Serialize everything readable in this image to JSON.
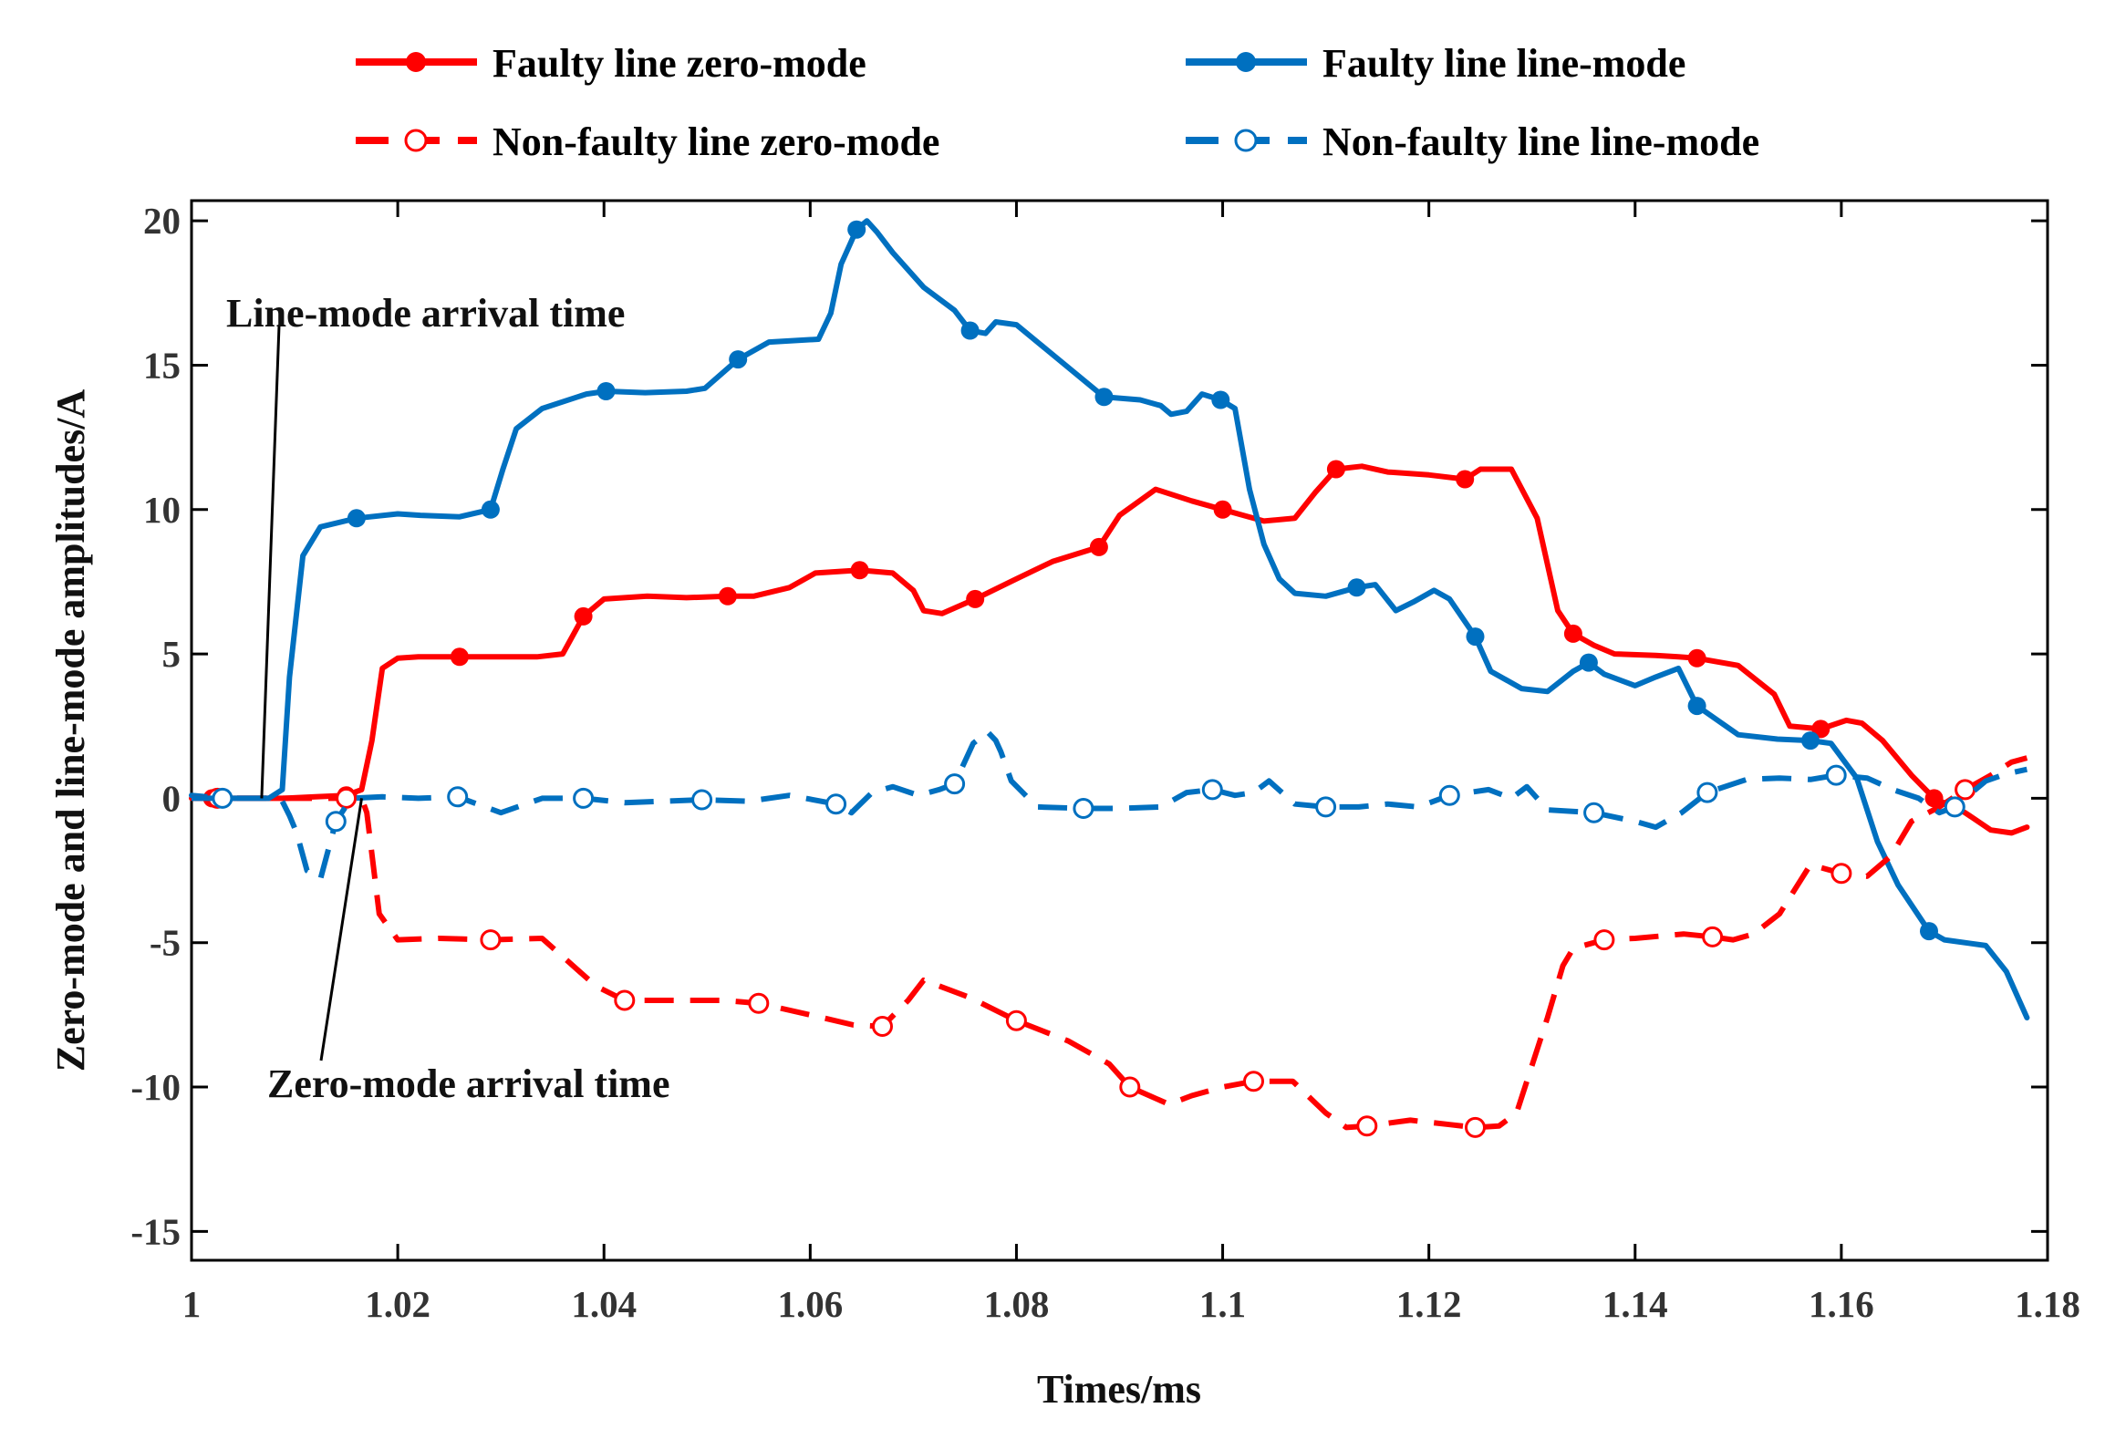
{
  "chart_data": {
    "type": "line",
    "title": "",
    "xlabel": "Times/ms",
    "ylabel": "Zero-mode and line-mode amplitudes/A",
    "xlim": [
      1,
      1.18
    ],
    "ylim": [
      -16,
      20.7
    ],
    "xticks": [
      1,
      1.02,
      1.04,
      1.06,
      1.08,
      1.1,
      1.12,
      1.14,
      1.16,
      1.18
    ],
    "xtick_labels": [
      "1",
      "1.02",
      "1.04",
      "1.06",
      "1.08",
      "1.1",
      "1.12",
      "1.14",
      "1.16",
      "1.18"
    ],
    "yticks": [
      20,
      15,
      10,
      5,
      0,
      -5,
      -10,
      -15
    ],
    "ytick_labels": [
      "20",
      "15",
      "10",
      "5",
      "0",
      "-5",
      "-10",
      "-15"
    ],
    "grid": false,
    "legend_position": "top",
    "annotations": [
      {
        "id": "line-mode",
        "text": "Line-mode arrival time",
        "x": 1.0068,
        "y": 0
      },
      {
        "id": "zero-mode",
        "text": "Zero-mode arrival time",
        "x": 1.0165,
        "y": 0
      }
    ],
    "series": [
      {
        "id": "faulty-zero",
        "name": "Faulty line zero-mode",
        "color": "#ff0000",
        "style": "solid",
        "marker": "filled",
        "x": [
          1.0,
          1.002,
          1.005,
          1.0068,
          1.009,
          1.012,
          1.015,
          1.0165,
          1.0175,
          1.0185,
          1.02,
          1.022,
          1.026,
          1.03,
          1.0335,
          1.036,
          1.038,
          1.04,
          1.0442,
          1.048,
          1.052,
          1.0545,
          1.058,
          1.0605,
          1.0648,
          1.068,
          1.07,
          1.071,
          1.0728,
          1.076,
          1.08,
          1.0835,
          1.088,
          1.09,
          1.0935,
          1.097,
          1.1,
          1.102,
          1.104,
          1.107,
          1.109,
          1.111,
          1.1135,
          1.116,
          1.12,
          1.1235,
          1.125,
          1.128,
          1.1305,
          1.1325,
          1.134,
          1.136,
          1.138,
          1.142,
          1.1442,
          1.146,
          1.15,
          1.1535,
          1.155,
          1.158,
          1.1605,
          1.162,
          1.164,
          1.1668,
          1.169,
          1.172,
          1.1745,
          1.1765,
          1.178
        ],
        "y": [
          0,
          0,
          0,
          0,
          0,
          0.05,
          0.1,
          0.3,
          2.0,
          4.5,
          4.85,
          4.9,
          4.9,
          4.9,
          4.9,
          5.0,
          6.3,
          6.9,
          7.0,
          6.95,
          7.0,
          7.0,
          7.3,
          7.8,
          7.9,
          7.8,
          7.2,
          6.5,
          6.4,
          6.9,
          7.6,
          8.2,
          8.7,
          9.8,
          10.7,
          10.3,
          10.0,
          9.8,
          9.6,
          9.7,
          10.6,
          11.4,
          11.5,
          11.3,
          11.2,
          11.05,
          11.4,
          11.4,
          9.7,
          6.5,
          5.7,
          5.3,
          5.0,
          4.95,
          4.9,
          4.85,
          4.6,
          3.6,
          2.5,
          2.4,
          2.7,
          2.6,
          2.0,
          0.8,
          0.0,
          -0.5,
          -1.1,
          -1.2,
          -1.0
        ]
      },
      {
        "id": "faulty-line",
        "name": "Faulty line line-mode",
        "color": "#0070c0",
        "style": "solid",
        "marker": "filled",
        "x": [
          1.0,
          1.003,
          1.006,
          1.0075,
          1.0088,
          1.0095,
          1.0108,
          1.0125,
          1.016,
          1.02,
          1.0222,
          1.026,
          1.029,
          1.0302,
          1.0315,
          1.034,
          1.0383,
          1.0402,
          1.044,
          1.048,
          1.0498,
          1.053,
          1.056,
          1.0608,
          1.062,
          1.063,
          1.0645,
          1.0655,
          1.0665,
          1.068,
          1.071,
          1.074,
          1.0755,
          1.077,
          1.078,
          1.08,
          1.0885,
          1.092,
          1.094,
          1.095,
          1.0965,
          1.098,
          1.0998,
          1.1012,
          1.1026,
          1.104,
          1.1055,
          1.107,
          1.11,
          1.113,
          1.1148,
          1.1168,
          1.1185,
          1.1205,
          1.122,
          1.1245,
          1.126,
          1.129,
          1.1315,
          1.134,
          1.1355,
          1.137,
          1.14,
          1.142,
          1.1442,
          1.146,
          1.15,
          1.1538,
          1.157,
          1.159,
          1.1615,
          1.1635,
          1.1655,
          1.1685,
          1.17,
          1.174,
          1.176,
          1.178
        ],
        "y": [
          0.1,
          0,
          0,
          0,
          0.3,
          4.2,
          8.4,
          9.4,
          9.7,
          9.85,
          9.8,
          9.75,
          10.0,
          11.4,
          12.8,
          13.5,
          14.0,
          14.1,
          14.05,
          14.1,
          14.2,
          15.2,
          15.8,
          15.9,
          16.8,
          18.5,
          19.7,
          20.0,
          19.6,
          18.9,
          17.7,
          16.9,
          16.2,
          16.1,
          16.5,
          16.4,
          13.9,
          13.8,
          13.6,
          13.3,
          13.4,
          14.0,
          13.8,
          13.5,
          10.7,
          8.8,
          7.6,
          7.1,
          7.0,
          7.3,
          7.4,
          6.5,
          6.8,
          7.2,
          6.9,
          5.6,
          4.4,
          3.8,
          3.7,
          4.4,
          4.7,
          4.3,
          3.9,
          4.2,
          4.5,
          3.2,
          2.2,
          2.05,
          2.0,
          1.9,
          0.7,
          -1.5,
          -3.0,
          -4.6,
          -4.9,
          -5.1,
          -6.0,
          -7.6
        ]
      },
      {
        "id": "nonfaulty-zero",
        "name": "Non-faulty line zero-mode",
        "color": "#ff0000",
        "style": "dashed",
        "marker": "open",
        "x": [
          1.0,
          1.0025,
          1.005,
          1.0068,
          1.009,
          1.012,
          1.015,
          1.0163,
          1.017,
          1.0182,
          1.02,
          1.024,
          1.029,
          1.034,
          1.0392,
          1.042,
          1.046,
          1.0515,
          1.055,
          1.06,
          1.0642,
          1.067,
          1.0695,
          1.071,
          1.0755,
          1.08,
          1.085,
          1.089,
          1.091,
          1.0948,
          1.097,
          1.1,
          1.103,
          1.1068,
          1.11,
          1.112,
          1.114,
          1.1182,
          1.122,
          1.1245,
          1.1268,
          1.1285,
          1.1315,
          1.133,
          1.134,
          1.137,
          1.14,
          1.1447,
          1.1475,
          1.1495,
          1.1515,
          1.154,
          1.157,
          1.16,
          1.1625,
          1.1648,
          1.1668,
          1.1695,
          1.172,
          1.1745,
          1.1765,
          1.178
        ],
        "y": [
          0,
          0,
          0,
          0,
          0,
          0,
          0,
          0.2,
          -0.5,
          -4.0,
          -4.9,
          -4.85,
          -4.9,
          -4.85,
          -6.5,
          -7.0,
          -7.0,
          -7.0,
          -7.1,
          -7.5,
          -7.85,
          -7.9,
          -7.0,
          -6.3,
          -6.9,
          -7.7,
          -8.4,
          -9.2,
          -10.0,
          -10.6,
          -10.3,
          -10.0,
          -9.8,
          -9.8,
          -10.9,
          -11.4,
          -11.35,
          -11.15,
          -11.3,
          -11.4,
          -11.35,
          -10.9,
          -7.6,
          -5.8,
          -5.2,
          -4.9,
          -4.85,
          -4.7,
          -4.8,
          -4.9,
          -4.7,
          -4.0,
          -2.3,
          -2.6,
          -2.7,
          -2.0,
          -0.8,
          -0.3,
          0.3,
          0.8,
          1.25,
          1.4
        ]
      },
      {
        "id": "nonfaulty-line",
        "name": "Non-faulty line line-mode",
        "color": "#0070c0",
        "style": "dashed",
        "marker": "open",
        "x": [
          1.0,
          1.003,
          1.006,
          1.0075,
          1.0088,
          1.0095,
          1.0102,
          1.0112,
          1.0125,
          1.014,
          1.0155,
          1.0185,
          1.022,
          1.0258,
          1.03,
          1.034,
          1.038,
          1.042,
          1.0495,
          1.054,
          1.058,
          1.0625,
          1.064,
          1.066,
          1.068,
          1.0705,
          1.0725,
          1.074,
          1.0758,
          1.0772,
          1.078,
          1.0785,
          1.0795,
          1.082,
          1.0865,
          1.09,
          1.094,
          1.0965,
          1.099,
          1.1012,
          1.103,
          1.1045,
          1.107,
          1.11,
          1.1132,
          1.116,
          1.119,
          1.122,
          1.1258,
          1.128,
          1.1295,
          1.1315,
          1.136,
          1.14,
          1.142,
          1.143,
          1.1445,
          1.147,
          1.1508,
          1.154,
          1.157,
          1.1595,
          1.1625,
          1.165,
          1.1675,
          1.1695,
          1.171,
          1.174,
          1.176,
          1.178
        ],
        "y": [
          0,
          0,
          0,
          0,
          -0.1,
          -0.6,
          -1.2,
          -2.5,
          -2.8,
          -0.8,
          0,
          0.05,
          0,
          0.05,
          -0.5,
          0,
          0,
          -0.15,
          -0.05,
          -0.1,
          0.1,
          -0.2,
          -0.5,
          0.2,
          0.4,
          0.1,
          0.3,
          0.5,
          1.9,
          2.3,
          2.0,
          1.6,
          0.6,
          -0.3,
          -0.35,
          -0.35,
          -0.3,
          0.2,
          0.3,
          0.1,
          0.2,
          0.6,
          -0.2,
          -0.3,
          -0.3,
          -0.2,
          -0.3,
          0.1,
          0.3,
          0.0,
          0.4,
          -0.4,
          -0.5,
          -0.8,
          -1.0,
          -0.8,
          -0.5,
          0.2,
          0.65,
          0.7,
          0.65,
          0.8,
          0.7,
          0.3,
          0.0,
          -0.5,
          -0.3,
          0.6,
          0.85,
          1.0
        ]
      }
    ]
  }
}
